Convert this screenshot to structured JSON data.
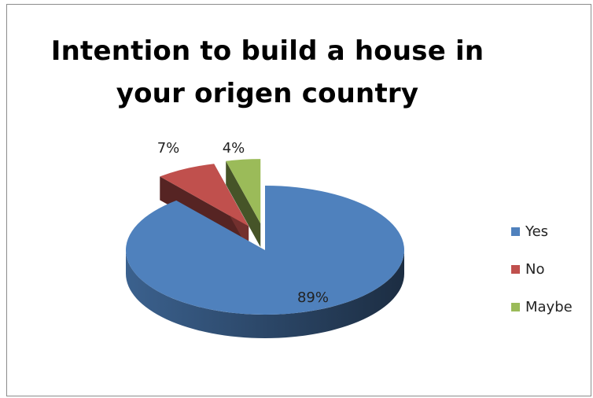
{
  "chart_data": {
    "type": "pie",
    "title": "Intention to build a house in your origen country",
    "title_lines": [
      "Intention to build a house in",
      "your origen country"
    ],
    "categories": [
      "Yes",
      "No",
      "Maybe"
    ],
    "values": [
      89,
      7,
      4
    ],
    "data_labels": [
      "89%",
      "7%",
      "4%"
    ],
    "colors": [
      "#4f81bd",
      "#c0504d",
      "#9bbb59"
    ],
    "exploded": [
      false,
      true,
      true
    ],
    "style": "3d-pie",
    "legend_position": "right"
  }
}
